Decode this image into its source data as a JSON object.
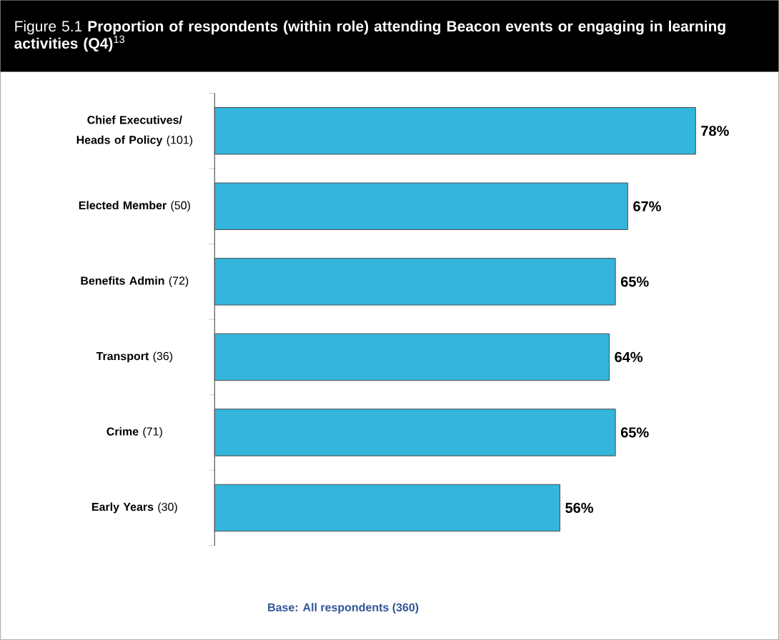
{
  "chart_data": {
    "type": "bar",
    "orientation": "horizontal",
    "title": "Figure 5.1 **Proportion of respondents (within role) attending Beacon events or engaging in learning activities (Q4)**$^{13}$",
    "categories": [
      "**Chief Executives/ Heads of Policy** (101)",
      "**Elected Member** (50)",
      "**Benefits Admin** (72)",
      "**Transport** (36)",
      "**Crime** (71)",
      "**Early Years** (30)"
    ],
    "values": [
      78,
      67,
      65,
      64,
      65,
      56
    ],
    "value_labels": [
      "78%",
      "67%",
      "65%",
      "64%",
      "65%",
      "56%"
    ],
    "color": "#33b5dc",
    "annotations": [
      "Base: All respondents (360)"
    ],
    "data_labels": false
  }
}
